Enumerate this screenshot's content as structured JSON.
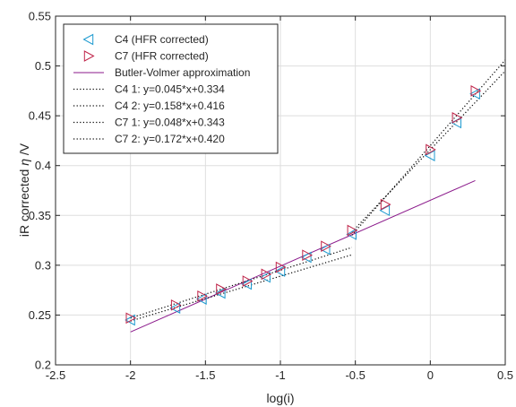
{
  "chart_data": {
    "type": "scatter",
    "xlabel": "log(i)",
    "ylabel_parts": [
      "iR corrected ",
      "η",
      " /V"
    ],
    "xlim": [
      -2.5,
      0.5
    ],
    "ylim": [
      0.2,
      0.55
    ],
    "xticks": [
      -2.5,
      -2,
      -1.5,
      -1,
      -0.5,
      0,
      0.5
    ],
    "xtick_labels": [
      "-2.5",
      "-2",
      "-1.5",
      "-1",
      "-0.5",
      "0",
      "0.5"
    ],
    "yticks": [
      0.2,
      0.25,
      0.3,
      0.35,
      0.4,
      0.45,
      0.5,
      0.55
    ],
    "ytick_labels": [
      "0.2",
      "0.25",
      "0.3",
      "0.35",
      "0.4",
      "0.45",
      "0.5",
      "0.55"
    ],
    "grid": true,
    "legend_position": "top-left",
    "colors": {
      "c4": "#1f9bd0",
      "c7": "#c0254a",
      "bv": "#8b1a8b",
      "fit": "#000000"
    },
    "series": [
      {
        "name": "C4 (HFR corrected)",
        "kind": "marker",
        "marker": "triangle-left",
        "color": "#1f9bd0",
        "x": [
          -2,
          -1.699,
          -1.523,
          -1.398,
          -1.222,
          -1.097,
          -1,
          -0.824,
          -0.699,
          -0.523,
          -0.301,
          0,
          0.176,
          0.301
        ],
        "y": [
          0.245,
          0.257,
          0.266,
          0.272,
          0.281,
          0.288,
          0.294,
          0.308,
          0.316,
          0.331,
          0.355,
          0.41,
          0.443,
          0.472
        ]
      },
      {
        "name": "C7 (HFR corrected)",
        "kind": "marker",
        "marker": "triangle-right",
        "color": "#c0254a",
        "x": [
          -2,
          -1.699,
          -1.523,
          -1.398,
          -1.222,
          -1.097,
          -1,
          -0.824,
          -0.699,
          -0.523,
          -0.301,
          0,
          0.176,
          0.301
        ],
        "y": [
          0.247,
          0.26,
          0.269,
          0.276,
          0.284,
          0.291,
          0.298,
          0.31,
          0.319,
          0.335,
          0.361,
          0.416,
          0.448,
          0.475
        ]
      },
      {
        "name": "Butler-Volmer approximation",
        "kind": "line",
        "dash": "solid",
        "color": "#8b1a8b",
        "x": [
          -2,
          0.3
        ],
        "y": [
          0.233,
          0.385
        ]
      },
      {
        "name": "C4 1: y=0.045*x+0.334",
        "kind": "line",
        "dash": "dotted",
        "color": "#000000",
        "x": [
          -2,
          -0.523
        ],
        "y": [
          0.244,
          0.3105
        ]
      },
      {
        "name": "C4 2: y=0.158*x+0.416",
        "kind": "line",
        "dash": "dotted",
        "color": "#000000",
        "x": [
          -0.523,
          0.5
        ],
        "y": [
          0.3334,
          0.495
        ]
      },
      {
        "name": "C7 1: y=0.048*x+0.343",
        "kind": "line",
        "dash": "dotted",
        "color": "#000000",
        "x": [
          -2,
          -0.523
        ],
        "y": [
          0.247,
          0.3179
        ]
      },
      {
        "name": "C7 2: y=0.172*x+0.420",
        "kind": "line",
        "dash": "dotted",
        "color": "#000000",
        "x": [
          -0.523,
          0.5
        ],
        "y": [
          0.3301,
          0.506
        ]
      }
    ]
  }
}
